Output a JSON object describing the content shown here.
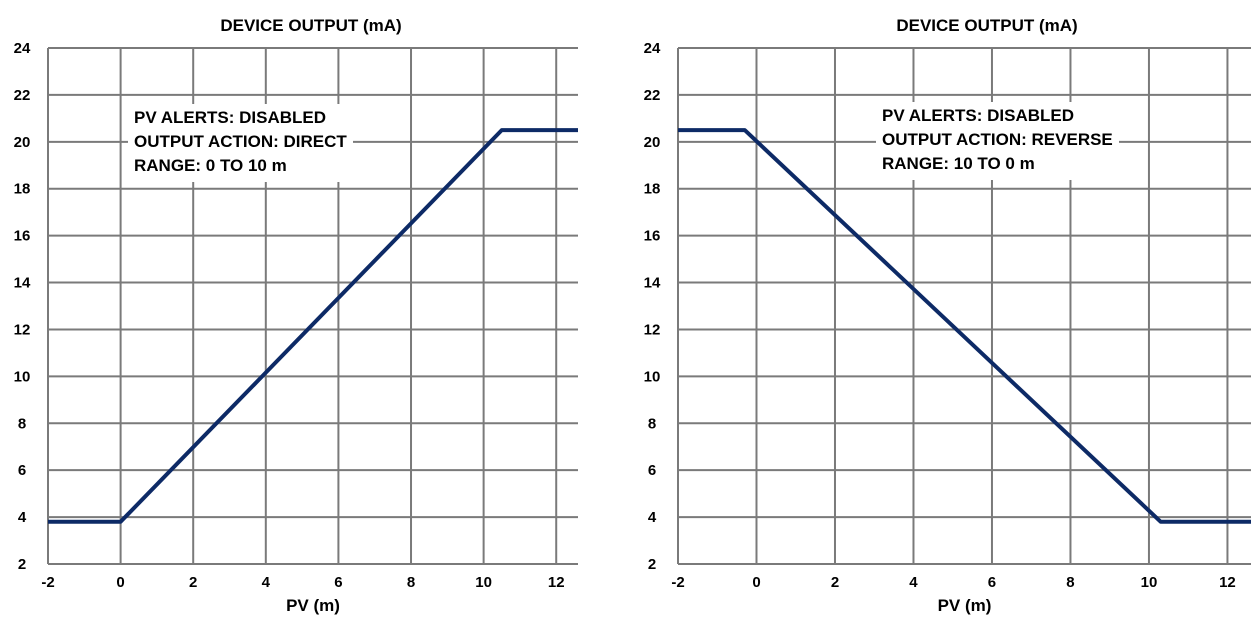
{
  "chart_data": [
    {
      "type": "line",
      "title": "DEVICE OUTPUT (mA)",
      "xlabel": "PV (m)",
      "ylabel": "",
      "xlim": [
        -2,
        12.6
      ],
      "ylim": [
        2,
        24
      ],
      "xticks": [
        -2,
        0,
        2,
        4,
        6,
        8,
        10,
        12
      ],
      "yticks": [
        2,
        4,
        6,
        8,
        10,
        12,
        14,
        16,
        18,
        20,
        22,
        24
      ],
      "grid": true,
      "annotation": [
        "PV ALERTS: DISABLED",
        "OUTPUT ACTION: DIRECT",
        "RANGE: 0 TO 10 m"
      ],
      "line_color": "#0d2a66",
      "series": [
        {
          "x": [
            -2,
            0,
            10.5,
            12.6
          ],
          "y": [
            3.8,
            3.8,
            20.5,
            20.5
          ]
        }
      ]
    },
    {
      "type": "line",
      "title": "DEVICE OUTPUT (mA)",
      "xlabel": "PV (m)",
      "ylabel": "",
      "xlim": [
        -2,
        12.6
      ],
      "ylim": [
        2,
        24
      ],
      "xticks": [
        -2,
        0,
        2,
        4,
        6,
        8,
        10,
        12
      ],
      "yticks": [
        2,
        4,
        6,
        8,
        10,
        12,
        14,
        16,
        18,
        20,
        22,
        24
      ],
      "grid": true,
      "annotation": [
        "PV ALERTS: DISABLED",
        "OUTPUT ACTION: REVERSE",
        "RANGE: 10 TO 0 m"
      ],
      "line_color": "#0d2a66",
      "series": [
        {
          "x": [
            -2,
            -0.3,
            10.3,
            12.6
          ],
          "y": [
            20.5,
            20.5,
            3.8,
            3.8
          ]
        }
      ]
    }
  ]
}
